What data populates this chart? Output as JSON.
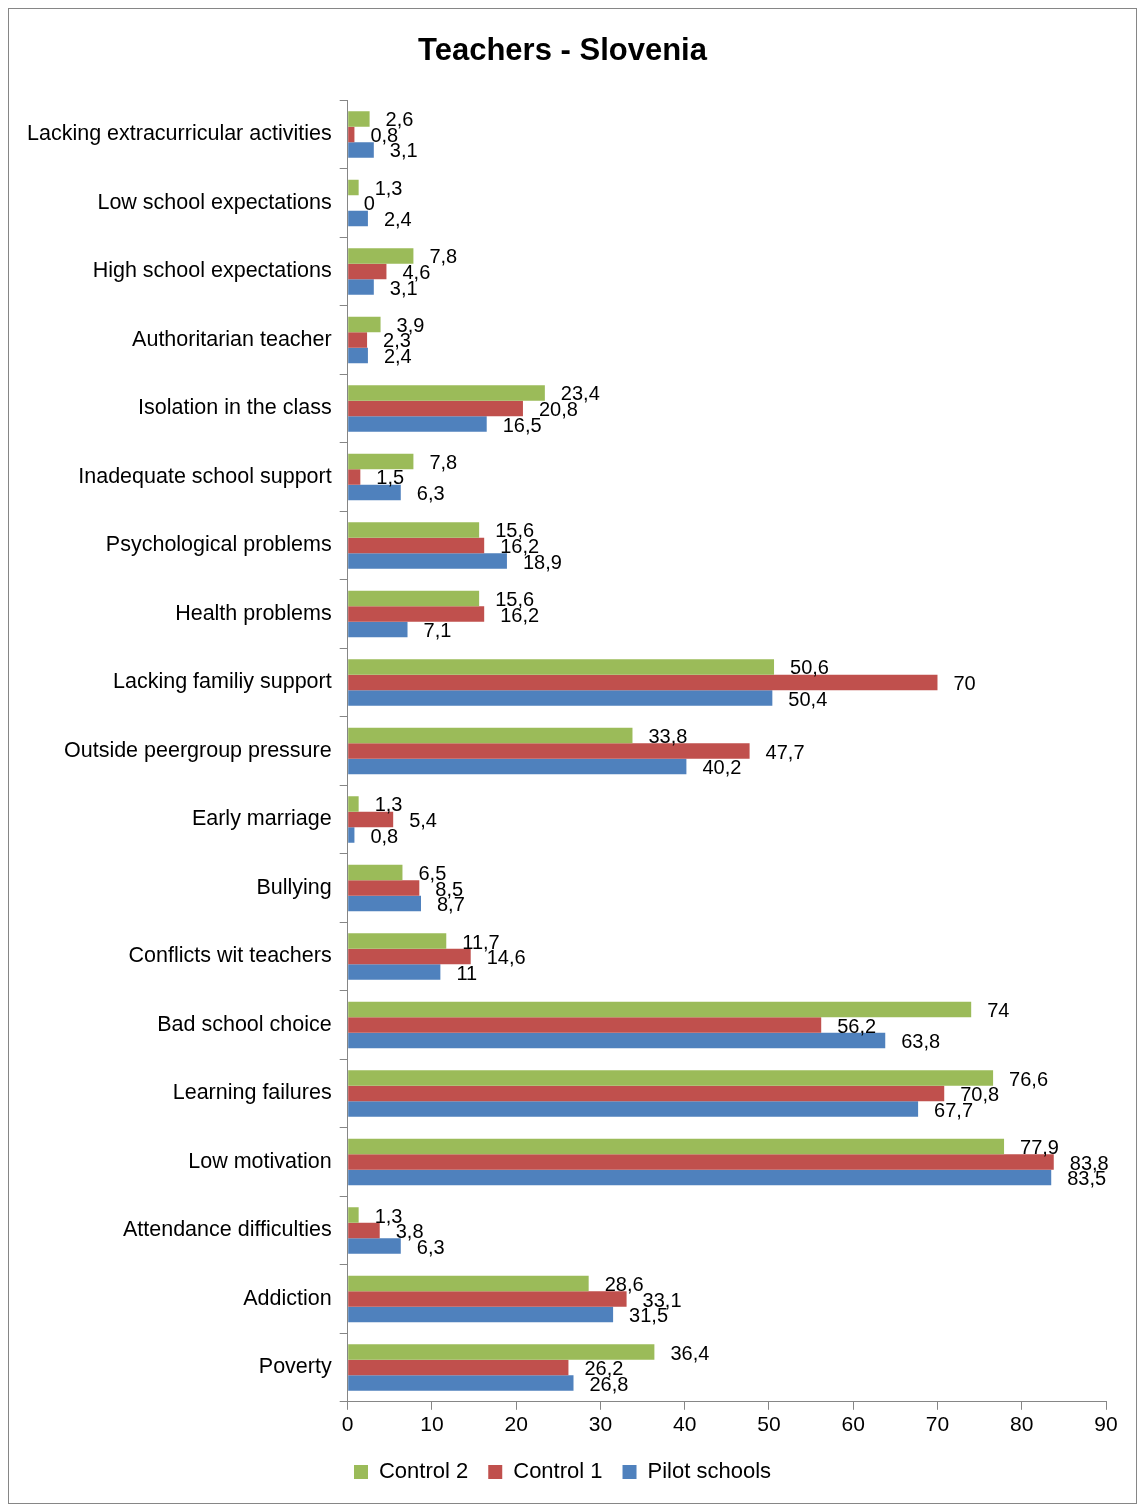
{
  "chart_data": {
    "type": "bar",
    "orientation": "horizontal",
    "title": "Teachers - Slovenia",
    "categories": [
      "Lacking extracurricular activities",
      "Low school expectations",
      "High school expectations",
      "Authoritarian teacher",
      "Isolation in the class",
      "Inadequate school support",
      "Psychological problems",
      "Health problems",
      "Lacking familiy support",
      "Outside peergroup pressure",
      "Early marriage",
      "Bullying",
      "Conflicts wit teachers",
      "Bad school choice",
      "Learning failures",
      "Low motivation",
      "Attendance difficulties",
      "Addiction",
      "Poverty"
    ],
    "series": [
      {
        "name": "Control 2",
        "color": "#9bbb59",
        "values": [
          2.6,
          1.3,
          7.8,
          3.9,
          23.4,
          7.8,
          15.6,
          15.6,
          50.6,
          33.8,
          1.3,
          6.5,
          11.7,
          74,
          76.6,
          77.9,
          1.3,
          28.6,
          36.4
        ],
        "value_labels": [
          "2,6",
          "1,3",
          "7,8",
          "3,9",
          "23,4",
          "7,8",
          "15,6",
          "15,6",
          "50,6",
          "33,8",
          "1,3",
          "6,5",
          "11,7",
          "74",
          "76,6",
          "77,9",
          "1,3",
          "28,6",
          "36,4"
        ]
      },
      {
        "name": "Control 1",
        "color": "#c0504d",
        "values": [
          0.8,
          0,
          4.6,
          2.3,
          20.8,
          1.5,
          16.2,
          16.2,
          70,
          47.7,
          5.4,
          8.5,
          14.6,
          56.2,
          70.8,
          83.8,
          3.8,
          33.1,
          26.2
        ],
        "value_labels": [
          "0,8",
          "0",
          "4,6",
          "2,3",
          "20,8",
          "1,5",
          "16,2",
          "16,2",
          "70",
          "47,7",
          "5,4",
          "8,5",
          "14,6",
          "56,2",
          "70,8",
          "83,8",
          "3,8",
          "33,1",
          "26,2"
        ]
      },
      {
        "name": "Pilot schools",
        "color": "#4f81bd",
        "values": [
          3.1,
          2.4,
          3.1,
          2.4,
          16.5,
          6.3,
          18.9,
          7.1,
          50.4,
          40.2,
          0.8,
          8.7,
          11,
          63.8,
          67.7,
          83.5,
          6.3,
          31.5,
          26.8
        ],
        "value_labels": [
          "3,1",
          "2,4",
          "3,1",
          "2,4",
          "16,5",
          "6,3",
          "18,9",
          "7,1",
          "50,4",
          "40,2",
          "0,8",
          "8,7",
          "11",
          "63,8",
          "67,7",
          "83,5",
          "6,3",
          "31,5",
          "26,8"
        ]
      }
    ],
    "xlim": [
      0,
      90
    ],
    "xticks": [
      0,
      10,
      20,
      30,
      40,
      50,
      60,
      70,
      80,
      90
    ],
    "grid": false,
    "legend": "bottom"
  }
}
